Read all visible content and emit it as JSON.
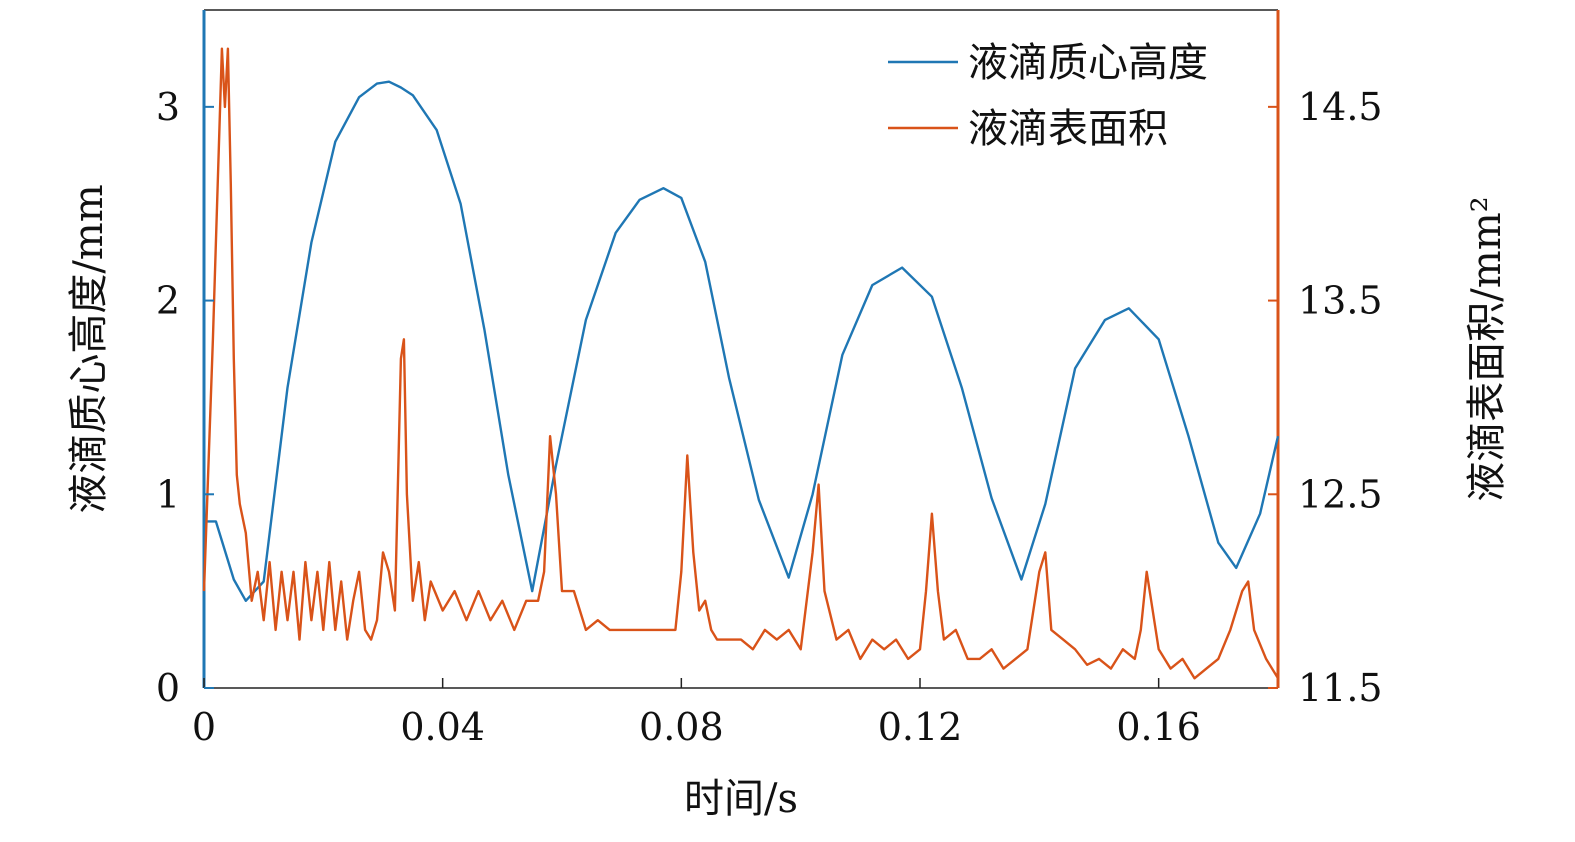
{
  "chart_data": {
    "type": "line",
    "xlabel": "时间/s",
    "ylabel_left": "液滴质心高度/mm",
    "ylabel_right": "液滴表面积/mm²",
    "xlim": [
      0,
      0.18
    ],
    "ylim_left": [
      0,
      3.5
    ],
    "ylim_right": [
      11.5,
      15.0
    ],
    "x_ticks": [
      "0",
      "0.04",
      "0.08",
      "0.12",
      "0.16"
    ],
    "y_left_ticks": [
      "0",
      "1",
      "2",
      "3"
    ],
    "y_right_ticks": [
      "11.5",
      "12.5",
      "13.5",
      "14.5"
    ],
    "legend_position": "top-right",
    "grid": false,
    "series": [
      {
        "name": "液滴质心高度",
        "axis": "left",
        "color": "#1f77b4",
        "x": [
          0,
          0.002,
          0.005,
          0.007,
          0.01,
          0.014,
          0.018,
          0.022,
          0.026,
          0.029,
          0.031,
          0.033,
          0.035,
          0.039,
          0.043,
          0.047,
          0.051,
          0.055,
          0.059,
          0.064,
          0.069,
          0.073,
          0.077,
          0.08,
          0.084,
          0.088,
          0.093,
          0.098,
          0.102,
          0.107,
          0.112,
          0.117,
          0.122,
          0.127,
          0.132,
          0.137,
          0.141,
          0.146,
          0.151,
          0.155,
          0.16,
          0.165,
          0.17,
          0.173,
          0.177,
          0.18
        ],
        "y": [
          0.86,
          0.86,
          0.56,
          0.45,
          0.55,
          1.55,
          2.3,
          2.82,
          3.05,
          3.12,
          3.13,
          3.1,
          3.06,
          2.88,
          2.5,
          1.85,
          1.1,
          0.5,
          1.15,
          1.9,
          2.35,
          2.52,
          2.58,
          2.53,
          2.2,
          1.6,
          0.97,
          0.57,
          1.0,
          1.72,
          2.08,
          2.17,
          2.02,
          1.55,
          0.98,
          0.56,
          0.95,
          1.65,
          1.9,
          1.96,
          1.8,
          1.3,
          0.75,
          0.62,
          0.9,
          1.3
        ]
      },
      {
        "name": "液滴表面积",
        "axis": "right",
        "color": "#d95319",
        "x": [
          0,
          0.0015,
          0.0025,
          0.003,
          0.0035,
          0.004,
          0.0045,
          0.005,
          0.0055,
          0.006,
          0.007,
          0.008,
          0.009,
          0.01,
          0.011,
          0.012,
          0.013,
          0.014,
          0.015,
          0.016,
          0.017,
          0.018,
          0.019,
          0.02,
          0.021,
          0.022,
          0.023,
          0.024,
          0.025,
          0.026,
          0.027,
          0.028,
          0.029,
          0.03,
          0.031,
          0.032,
          0.033,
          0.0335,
          0.034,
          0.035,
          0.036,
          0.037,
          0.038,
          0.04,
          0.042,
          0.044,
          0.046,
          0.048,
          0.05,
          0.052,
          0.054,
          0.056,
          0.057,
          0.058,
          0.059,
          0.06,
          0.062,
          0.064,
          0.066,
          0.068,
          0.07,
          0.072,
          0.074,
          0.076,
          0.078,
          0.079,
          0.08,
          0.081,
          0.082,
          0.083,
          0.084,
          0.085,
          0.086,
          0.088,
          0.09,
          0.092,
          0.094,
          0.096,
          0.098,
          0.1,
          0.102,
          0.103,
          0.104,
          0.106,
          0.108,
          0.11,
          0.112,
          0.114,
          0.116,
          0.118,
          0.12,
          0.121,
          0.122,
          0.123,
          0.124,
          0.126,
          0.128,
          0.13,
          0.132,
          0.134,
          0.136,
          0.138,
          0.14,
          0.141,
          0.142,
          0.144,
          0.146,
          0.148,
          0.15,
          0.152,
          0.154,
          0.156,
          0.157,
          0.158,
          0.159,
          0.16,
          0.162,
          0.164,
          0.166,
          0.168,
          0.17,
          0.172,
          0.174,
          0.175,
          0.176,
          0.178,
          0.18
        ],
        "y": [
          12.0,
          13.3,
          14.3,
          14.8,
          14.5,
          14.8,
          14.1,
          13.2,
          12.6,
          12.45,
          12.3,
          11.95,
          12.1,
          11.85,
          12.15,
          11.8,
          12.1,
          11.85,
          12.1,
          11.75,
          12.15,
          11.85,
          12.1,
          11.8,
          12.15,
          11.8,
          12.05,
          11.75,
          11.95,
          12.1,
          11.8,
          11.75,
          11.85,
          12.2,
          12.1,
          11.9,
          13.2,
          13.3,
          12.5,
          11.95,
          12.15,
          11.85,
          12.05,
          11.9,
          12.0,
          11.85,
          12.0,
          11.85,
          11.95,
          11.8,
          11.95,
          11.95,
          12.1,
          12.8,
          12.5,
          12.0,
          12.0,
          11.8,
          11.85,
          11.8,
          11.8,
          11.8,
          11.8,
          11.8,
          11.8,
          11.8,
          12.1,
          12.7,
          12.2,
          11.9,
          11.95,
          11.8,
          11.75,
          11.75,
          11.75,
          11.7,
          11.8,
          11.75,
          11.8,
          11.7,
          12.2,
          12.55,
          12.0,
          11.75,
          11.8,
          11.65,
          11.75,
          11.7,
          11.75,
          11.65,
          11.7,
          12.0,
          12.4,
          12.0,
          11.75,
          11.8,
          11.65,
          11.65,
          11.7,
          11.6,
          11.65,
          11.7,
          12.1,
          12.2,
          11.8,
          11.75,
          11.7,
          11.62,
          11.65,
          11.6,
          11.7,
          11.65,
          11.8,
          12.1,
          11.9,
          11.7,
          11.6,
          11.65,
          11.55,
          11.6,
          11.65,
          11.8,
          12.0,
          12.05,
          11.8,
          11.65,
          11.55
        ]
      }
    ]
  }
}
